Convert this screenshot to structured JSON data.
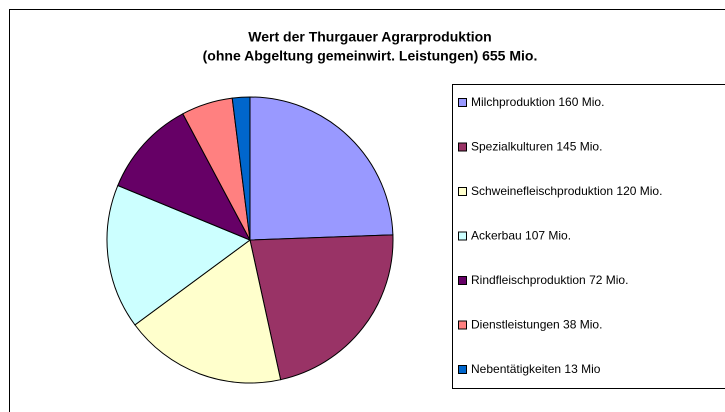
{
  "chart_data": {
    "type": "pie",
    "title": [
      "Wert der Thurgauer Agrarproduktion",
      "(ohne Abgeltung gemeinwirt. Leistungen) 655 Mio."
    ],
    "categories": [
      "Milchproduktion 160 Mio.",
      "Spezialkulturen 145 Mio.",
      "Schweinefleischproduktion 120 Mio.",
      "Ackerbau 107 Mio.",
      "Rindfleischproduktion 72 Mio.",
      "Dienstleistungen 38 Mio.",
      "Nebentätigkeiten 13 Mio"
    ],
    "values": [
      160,
      145,
      120,
      107,
      72,
      38,
      13
    ],
    "colors": [
      "#9999ff",
      "#993366",
      "#ffffcc",
      "#ccffff",
      "#660066",
      "#ff8080",
      "#0066cc"
    ],
    "legend": "right"
  }
}
